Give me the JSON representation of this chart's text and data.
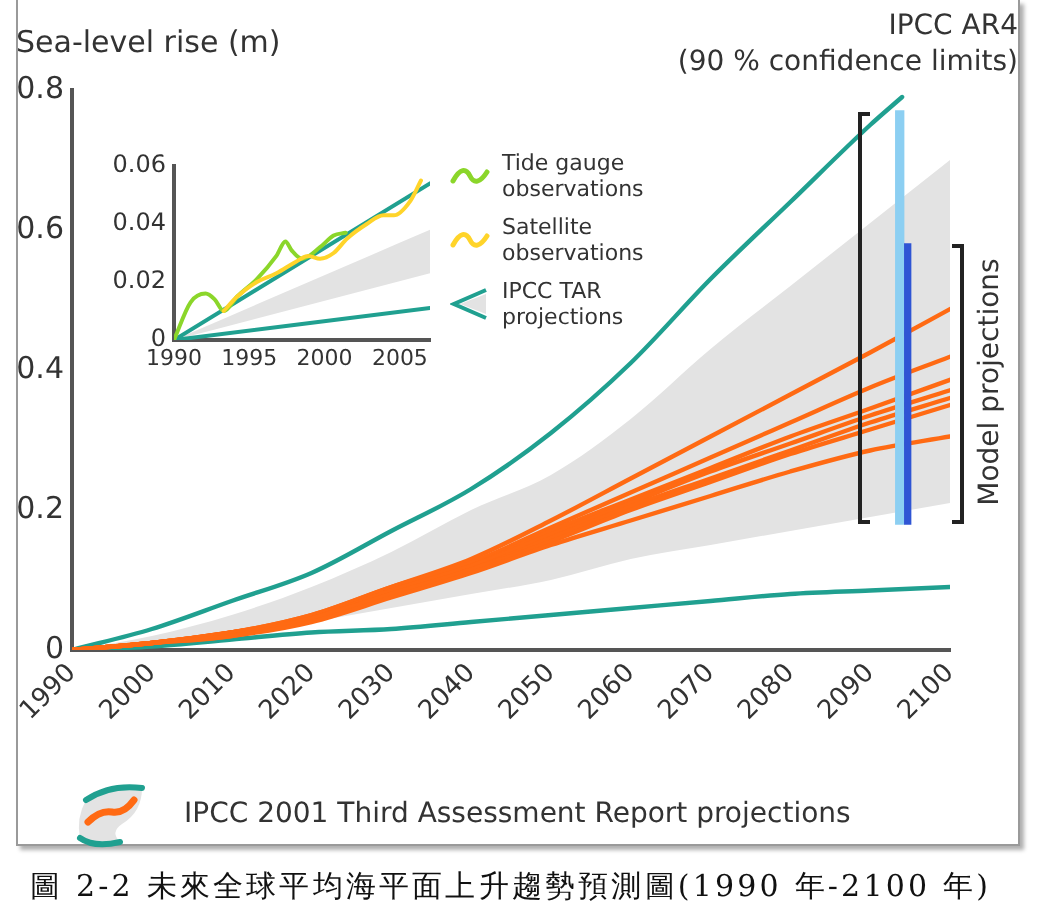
{
  "chart_data": [
    {
      "type": "line",
      "ylabel": "Sea-level rise (m)",
      "annotations": [
        "IPCC AR4\n(90 % confidence limits)",
        "Model projections",
        "圖 2-2 未來全球平均海平面上升趨勢預測圖(1990 年-2100 年)"
      ],
      "x": [
        1990,
        2000,
        2010,
        2020,
        2030,
        2040,
        2050,
        2060,
        2070,
        2080,
        2090,
        2100
      ],
      "xlim": [
        1990,
        2100
      ],
      "xticks": [
        1990,
        2000,
        2010,
        2020,
        2030,
        2040,
        2050,
        2060,
        2070,
        2080,
        2090,
        2100
      ],
      "ylim": [
        0,
        0.8
      ],
      "yticks": [
        0,
        0.2,
        0.4,
        0.6,
        0.8
      ],
      "legend": "bottom",
      "marker": "none",
      "series": [
        {
          "name": "IPCC 2001 Third Assessment Report projections",
          "color": "#e3e3e3",
          "values": [
            null,
            null,
            null,
            null,
            null,
            null,
            null,
            null,
            null,
            null,
            null,
            null
          ],
          "lower": [
            0,
            0.01,
            0.02,
            0.04,
            0.06,
            0.08,
            0.1,
            0.13,
            0.15,
            0.17,
            0.19,
            0.21
          ],
          "upper": [
            0,
            0.02,
            0.05,
            0.09,
            0.14,
            0.2,
            0.25,
            0.33,
            0.43,
            0.52,
            0.61,
            0.7
          ]
        },
        {
          "color": "#20a090",
          "x": [
            1990,
            2000,
            2010,
            2020,
            2030,
            2040,
            2050,
            2060,
            2070,
            2080,
            2090,
            2094
          ],
          "values": [
            0,
            0.03,
            0.07,
            0.11,
            0.17,
            0.23,
            0.31,
            0.41,
            0.53,
            0.64,
            0.75,
            0.79
          ]
        },
        {
          "color": "#20a090",
          "values": [
            0,
            0.005,
            0.015,
            0.025,
            0.03,
            0.04,
            0.05,
            0.06,
            0.07,
            0.08,
            0.085,
            0.09
          ]
        },
        {
          "color": "#ff6a13",
          "values": [
            0,
            0.01,
            0.025,
            0.05,
            0.09,
            0.13,
            0.185,
            0.245,
            0.305,
            0.365,
            0.425,
            0.487
          ]
        },
        {
          "color": "#ff6a13",
          "values": [
            0,
            0.01,
            0.025,
            0.05,
            0.09,
            0.125,
            0.175,
            0.225,
            0.275,
            0.325,
            0.375,
            0.419
          ]
        },
        {
          "color": "#ff6a13",
          "values": [
            0,
            0.01,
            0.025,
            0.045,
            0.085,
            0.12,
            0.17,
            0.215,
            0.26,
            0.305,
            0.345,
            0.386
          ]
        },
        {
          "color": "#ff6a13",
          "values": [
            0,
            0.01,
            0.025,
            0.045,
            0.085,
            0.12,
            0.165,
            0.21,
            0.255,
            0.295,
            0.335,
            0.371
          ]
        },
        {
          "color": "#ff6a13",
          "values": [
            0,
            0.01,
            0.025,
            0.045,
            0.08,
            0.115,
            0.16,
            0.205,
            0.245,
            0.285,
            0.325,
            0.36
          ]
        },
        {
          "color": "#ff6a13",
          "values": [
            0,
            0.01,
            0.02,
            0.045,
            0.08,
            0.115,
            0.155,
            0.2,
            0.24,
            0.28,
            0.315,
            0.35
          ]
        },
        {
          "color": "#ff6a13",
          "values": [
            0,
            0.01,
            0.02,
            0.04,
            0.075,
            0.11,
            0.15,
            0.185,
            0.22,
            0.255,
            0.285,
            0.305
          ]
        },
        {
          "type": "bar",
          "color": "#8ccff2",
          "x": [
            2093.7
          ],
          "base": [
            0.18
          ],
          "values": [
            0.59
          ]
        },
        {
          "type": "bar",
          "color": "#2f55d4",
          "x": [
            2094.7
          ],
          "base": [
            0.18
          ],
          "values": [
            0.4
          ]
        }
      ]
    },
    {
      "type": "line",
      "x": [
        1990,
        2007
      ],
      "xlim": [
        1990,
        2007
      ],
      "xticks": [
        1990,
        1995,
        2000,
        2005
      ],
      "ylim": [
        0,
        0.06
      ],
      "yticks": [
        0,
        0.02,
        0.04,
        0.06
      ],
      "legend": "right",
      "marker": "none",
      "series": [
        {
          "name": "Tide gauge observations",
          "color": "#8bd62a",
          "x": [
            1990,
            1991.1,
            1992.1,
            1992.7,
            1993.3,
            1994.2,
            1995.5,
            1996.8,
            1997.4,
            1997.8,
            1998.5,
            1999.7,
            2000.6,
            2001.4
          ],
          "values": [
            0,
            0.013,
            0.016,
            0.014,
            0.01,
            0.015,
            0.021,
            0.029,
            0.034,
            0.031,
            0.028,
            0.032,
            0.036,
            0.037
          ]
        },
        {
          "name": "Satellite observations",
          "color": "#ffd42a",
          "x": [
            1993.3,
            1994.2,
            1995.5,
            1996.8,
            1998.1,
            1998.9,
            1999.7,
            2000.6,
            2001.5,
            2002.8,
            2003.9,
            2004.6,
            2005.7,
            2006.4
          ],
          "values": [
            0.01,
            0.015,
            0.02,
            0.023,
            0.027,
            0.029,
            0.028,
            0.03,
            0.035,
            0.04,
            0.043,
            0.043,
            0.048,
            0.055
          ]
        },
        {
          "name": "IPCC TAR projections",
          "color": "#e3e3e3",
          "values": [
            null,
            null
          ],
          "lower": [
            0,
            0.023
          ],
          "upper": [
            0,
            0.038
          ]
        },
        {
          "color": "#20a090",
          "values": [
            0,
            0.054
          ]
        },
        {
          "color": "#20a090",
          "values": [
            0,
            0.011
          ]
        }
      ]
    }
  ]
}
